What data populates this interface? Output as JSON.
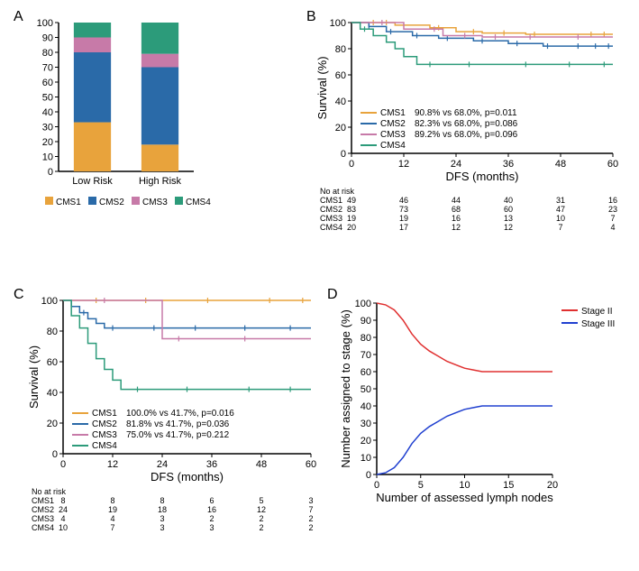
{
  "colors": {
    "cms1": "#e8a33c",
    "cms2": "#2a6aa8",
    "cms3": "#c77aa8",
    "cms4": "#2c9b7a",
    "stage2": "#e03030",
    "stage3": "#2040d0",
    "axis": "#000000",
    "grid": "#ffffff",
    "bg": "#ffffff"
  },
  "panelA": {
    "label": "A",
    "type": "stacked_bar",
    "categories": [
      "Low Risk",
      "High Risk"
    ],
    "series": [
      "CMS1",
      "CMS2",
      "CMS3",
      "CMS4"
    ],
    "values": {
      "Low Risk": {
        "CMS1": 33,
        "CMS2": 47,
        "CMS3": 10,
        "CMS4": 10
      },
      "High Risk": {
        "CMS1": 18,
        "CMS2": 52,
        "CMS3": 9,
        "CMS4": 21
      }
    },
    "yticks": [
      0,
      10,
      20,
      30,
      40,
      50,
      60,
      70,
      80,
      90,
      100
    ],
    "bar_width": 0.55
  },
  "panelB": {
    "label": "B",
    "type": "kaplan_meier",
    "xlabel": "DFS (months)",
    "ylabel": "Survival (%)",
    "xlim": [
      0,
      60
    ],
    "xticks": [
      0,
      12,
      24,
      36,
      48,
      60
    ],
    "ylim": [
      0,
      100
    ],
    "yticks": [
      0,
      20,
      40,
      60,
      80,
      100
    ],
    "line_width": 1.5,
    "legend_items": [
      "CMS1",
      "CMS2",
      "CMS3",
      "CMS4"
    ],
    "stats": [
      {
        "label": "CMS1",
        "text": "90.8% vs 68.0%, p=0.011"
      },
      {
        "label": "CMS2",
        "text": "82.3% vs 68.0%, p=0.086"
      },
      {
        "label": "CMS3",
        "text": "89.2% vs 68.0%, p=0.096"
      },
      {
        "label": "CMS4",
        "text": ""
      }
    ],
    "curves": {
      "CMS1": [
        [
          0,
          100
        ],
        [
          4,
          100
        ],
        [
          10,
          98
        ],
        [
          18,
          96
        ],
        [
          24,
          93
        ],
        [
          30,
          92
        ],
        [
          40,
          91
        ],
        [
          50,
          91
        ],
        [
          60,
          91
        ]
      ],
      "CMS2": [
        [
          0,
          100
        ],
        [
          4,
          97
        ],
        [
          8,
          93
        ],
        [
          14,
          90
        ],
        [
          20,
          88
        ],
        [
          28,
          86
        ],
        [
          36,
          84
        ],
        [
          44,
          82
        ],
        [
          52,
          82
        ],
        [
          60,
          82
        ]
      ],
      "CMS3": [
        [
          0,
          100
        ],
        [
          6,
          100
        ],
        [
          12,
          95
        ],
        [
          18,
          95
        ],
        [
          21,
          90
        ],
        [
          30,
          89
        ],
        [
          40,
          89
        ],
        [
          50,
          89
        ],
        [
          60,
          89
        ]
      ],
      "CMS4": [
        [
          0,
          100
        ],
        [
          2,
          95
        ],
        [
          5,
          90
        ],
        [
          8,
          85
        ],
        [
          10,
          80
        ],
        [
          12,
          74
        ],
        [
          15,
          68
        ],
        [
          24,
          68
        ],
        [
          36,
          68
        ],
        [
          48,
          68
        ],
        [
          60,
          68
        ]
      ]
    },
    "censor_ticks": {
      "CMS1": [
        5,
        8,
        20,
        28,
        35,
        42,
        55,
        58
      ],
      "CMS2": [
        4,
        9,
        15,
        22,
        30,
        38,
        45,
        52,
        56,
        59
      ],
      "CMS3": [
        7,
        19,
        26,
        33,
        41,
        52
      ],
      "CMS4": [
        3,
        18,
        27,
        40,
        50,
        58
      ]
    },
    "risk_header": "No at risk",
    "risk_rows": [
      {
        "label": "CMS1",
        "vals": [
          49,
          46,
          44,
          40,
          31,
          16
        ]
      },
      {
        "label": "CMS2",
        "vals": [
          83,
          73,
          68,
          60,
          47,
          23
        ]
      },
      {
        "label": "CMS3",
        "vals": [
          19,
          19,
          16,
          13,
          10,
          7
        ]
      },
      {
        "label": "CMS4",
        "vals": [
          20,
          17,
          12,
          12,
          7,
          4
        ]
      }
    ]
  },
  "panelC": {
    "label": "C",
    "type": "kaplan_meier",
    "xlabel": "DFS (months)",
    "ylabel": "Survival (%)",
    "xlim": [
      0,
      60
    ],
    "xticks": [
      0,
      12,
      24,
      36,
      48,
      60
    ],
    "ylim": [
      0,
      100
    ],
    "yticks": [
      0,
      20,
      40,
      60,
      80,
      100
    ],
    "line_width": 1.5,
    "legend_items": [
      "CMS1",
      "CMS2",
      "CMS3",
      "CMS4"
    ],
    "stats": [
      {
        "label": "CMS1",
        "text": "100.0% vs 41.7%, p=0.016"
      },
      {
        "label": "CMS2",
        "text": "81.8% vs 41.7%, p=0.036"
      },
      {
        "label": "CMS3",
        "text": "75.0% vs 41.7%, p=0.212"
      },
      {
        "label": "CMS4",
        "text": ""
      }
    ],
    "curves": {
      "CMS1": [
        [
          0,
          100
        ],
        [
          60,
          100
        ]
      ],
      "CMS2": [
        [
          0,
          100
        ],
        [
          2,
          96
        ],
        [
          4,
          92
        ],
        [
          6,
          88
        ],
        [
          8,
          85
        ],
        [
          10,
          82
        ],
        [
          14,
          82
        ],
        [
          24,
          82
        ],
        [
          36,
          82
        ],
        [
          48,
          82
        ],
        [
          60,
          82
        ]
      ],
      "CMS3": [
        [
          0,
          100
        ],
        [
          20,
          100
        ],
        [
          24,
          75
        ],
        [
          36,
          75
        ],
        [
          48,
          75
        ],
        [
          60,
          75
        ]
      ],
      "CMS4": [
        [
          0,
          100
        ],
        [
          2,
          90
        ],
        [
          4,
          82
        ],
        [
          6,
          72
        ],
        [
          8,
          62
        ],
        [
          10,
          55
        ],
        [
          12,
          48
        ],
        [
          14,
          42
        ],
        [
          24,
          42
        ],
        [
          36,
          42
        ],
        [
          48,
          42
        ],
        [
          60,
          42
        ]
      ]
    },
    "censor_ticks": {
      "CMS1": [
        8,
        20,
        35,
        50,
        58
      ],
      "CMS2": [
        5,
        12,
        22,
        32,
        44,
        55
      ],
      "CMS3": [
        10,
        28,
        44
      ],
      "CMS4": [
        18,
        30,
        45,
        55
      ]
    },
    "risk_header": "No at risk",
    "risk_rows": [
      {
        "label": "CMS1",
        "vals": [
          8,
          8,
          8,
          6,
          5,
          3
        ]
      },
      {
        "label": "CMS2",
        "vals": [
          24,
          19,
          18,
          16,
          12,
          7
        ]
      },
      {
        "label": "CMS3",
        "vals": [
          4,
          4,
          3,
          2,
          2,
          2
        ]
      },
      {
        "label": "CMS4",
        "vals": [
          10,
          7,
          3,
          3,
          2,
          2
        ]
      }
    ]
  },
  "panelD": {
    "label": "D",
    "type": "line",
    "xlabel": "Number of assessed lymph nodes",
    "ylabel": "Number assigned to stage (%)",
    "xlim": [
      0,
      20
    ],
    "xticks": [
      0,
      5,
      10,
      15,
      20
    ],
    "ylim": [
      0,
      100
    ],
    "yticks": [
      0,
      10,
      20,
      30,
      40,
      50,
      60,
      70,
      80,
      90,
      100
    ],
    "line_width": 1.5,
    "legend_items": [
      "Stage II",
      "Stage III"
    ],
    "curves": {
      "Stage II": [
        [
          0,
          100
        ],
        [
          1,
          99
        ],
        [
          2,
          96
        ],
        [
          3,
          90
        ],
        [
          4,
          82
        ],
        [
          5,
          76
        ],
        [
          6,
          72
        ],
        [
          7,
          69
        ],
        [
          8,
          66
        ],
        [
          9,
          64
        ],
        [
          10,
          62
        ],
        [
          11,
          61
        ],
        [
          12,
          60
        ],
        [
          13,
          60
        ],
        [
          14,
          60
        ],
        [
          15,
          60
        ],
        [
          16,
          60
        ],
        [
          17,
          60
        ],
        [
          18,
          60
        ],
        [
          19,
          60
        ],
        [
          20,
          60
        ]
      ],
      "Stage III": [
        [
          0,
          0
        ],
        [
          1,
          1
        ],
        [
          2,
          4
        ],
        [
          3,
          10
        ],
        [
          4,
          18
        ],
        [
          5,
          24
        ],
        [
          6,
          28
        ],
        [
          7,
          31
        ],
        [
          8,
          34
        ],
        [
          9,
          36
        ],
        [
          10,
          38
        ],
        [
          11,
          39
        ],
        [
          12,
          40
        ],
        [
          13,
          40
        ],
        [
          14,
          40
        ],
        [
          15,
          40
        ],
        [
          16,
          40
        ],
        [
          17,
          40
        ],
        [
          18,
          40
        ],
        [
          19,
          40
        ],
        [
          20,
          40
        ]
      ]
    }
  }
}
